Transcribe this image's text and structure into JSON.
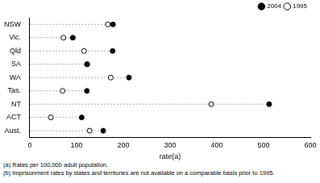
{
  "chart_data": {
    "type": "dot",
    "orientation": "horizontal",
    "categories": [
      "NSW",
      "Vic.",
      "Qld",
      "SA",
      "WA",
      "Tas.",
      "NT",
      "ACT",
      "Aust."
    ],
    "series": [
      {
        "name": "2004",
        "color": "#000000",
        "marker": "circle",
        "values": [
          178,
          92,
          177,
          123,
          212,
          122,
          512,
          111,
          157
        ]
      },
      {
        "name": "1995",
        "color": "#000000",
        "marker": "open_circle",
        "values": [
          167,
          72,
          116,
          122,
          173,
          70,
          388,
          45,
          128
        ]
      }
    ],
    "xlabel": "rate(a)",
    "xlim": [
      0,
      600
    ],
    "xticks": [
      0,
      100,
      200,
      300,
      400,
      500,
      600
    ],
    "grid": false,
    "legend": "top right",
    "notes": [
      "(a) Rates per 100,000 adult population.",
      "(b) Imprisonment rates by states and territories are not available on a comparable basis prior to 1995."
    ]
  }
}
